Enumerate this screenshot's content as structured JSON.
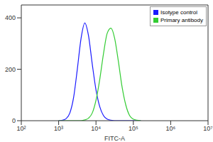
{
  "chart_data": {
    "type": "line",
    "log": "x",
    "x_label": "FITC-A",
    "legend": "top-right",
    "x": [
      1000,
      1259,
      1585,
      1995,
      2512,
      3162,
      3981,
      5012,
      6310,
      7943,
      10000,
      12589,
      15849,
      19953,
      25119,
      31623,
      39811,
      50119,
      63096,
      79433,
      100000,
      125893,
      158489
    ],
    "series": [
      {
        "name": "Isotype control",
        "color": "#1a1aff",
        "values": [
          0,
          2,
          8,
          30,
          90,
          200,
          320,
          380,
          330,
          220,
          120,
          55,
          20,
          6,
          2,
          0,
          0,
          0,
          0,
          0,
          0,
          0,
          0
        ]
      },
      {
        "name": "Primary antibody",
        "color": "#33cc33",
        "values": [
          0,
          0,
          0,
          0,
          0,
          0,
          0,
          3,
          10,
          30,
          80,
          160,
          260,
          340,
          360,
          320,
          230,
          130,
          60,
          20,
          6,
          2,
          0
        ]
      }
    ],
    "xlim": [
      100,
      10000000
    ],
    "xticks": [
      {
        "value": 100,
        "label": "10²"
      },
      {
        "value": 1000,
        "label": "10³"
      },
      {
        "value": 10000,
        "label": "10⁴"
      },
      {
        "value": 100000,
        "label": "10⁵"
      },
      {
        "value": 1000000,
        "label": "10⁶"
      },
      {
        "value": 10000000,
        "label": "10⁷"
      }
    ],
    "ylim": [
      0,
      450
    ],
    "yticks": [
      0,
      200,
      400
    ]
  }
}
